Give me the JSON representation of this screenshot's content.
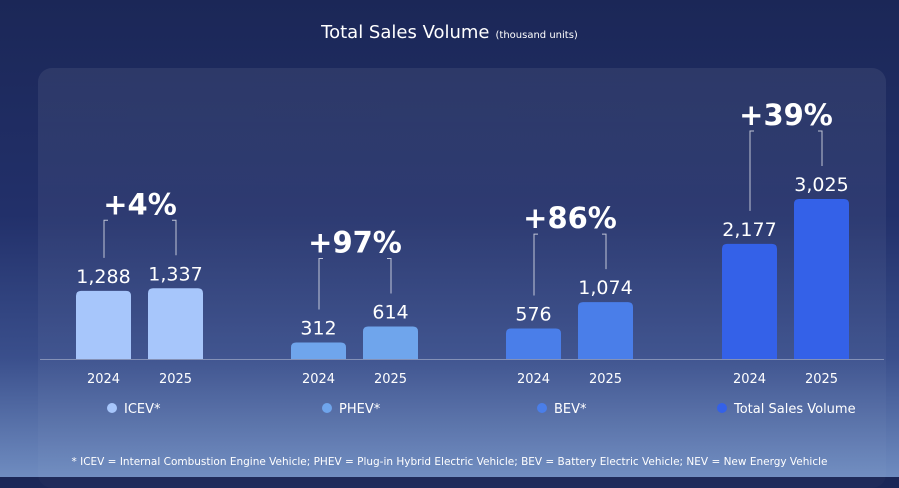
{
  "chart_data": {
    "type": "bar",
    "title": "Total Sales Volume",
    "subtitle": "(thousand units)",
    "categories": [
      "2024",
      "2025"
    ],
    "groups": [
      {
        "name": "ICEV*",
        "values": [
          1288,
          1337
        ],
        "labels": [
          "1,288",
          "1,337"
        ],
        "change": "+4%",
        "color": "#a7c6fb"
      },
      {
        "name": "PHEV*",
        "values": [
          312,
          614
        ],
        "labels": [
          "312",
          "614"
        ],
        "change": "+97%",
        "color": "#6fa5ec"
      },
      {
        "name": "BEV*",
        "values": [
          576,
          1074
        ],
        "labels": [
          "576",
          "1,074"
        ],
        "change": "+86%",
        "color": "#4a7ee9"
      },
      {
        "name": "Total Sales Volume",
        "values": [
          2177,
          3025
        ],
        "labels": [
          "2,177",
          "3,025"
        ],
        "change": "+39%",
        "color": "#3461e8"
      }
    ],
    "grid": false,
    "legend": "bottom"
  },
  "footnote": "* ICEV = Internal Combustion Engine Vehicle; PHEV = Plug-in Hybrid Electric Vehicle; BEV = Battery Electric Vehicle; NEV = New Energy Vehicle"
}
